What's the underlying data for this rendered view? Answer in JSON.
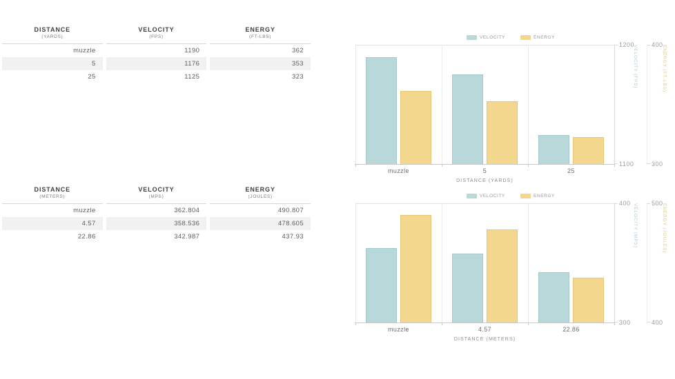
{
  "tables": [
    {
      "columns": [
        {
          "title": "DISTANCE",
          "unit": "(YARDS)"
        },
        {
          "title": "VELOCITY",
          "unit": "(FPS)"
        },
        {
          "title": "ENERGY",
          "unit": "(FT-LBS)"
        }
      ],
      "rows": [
        [
          "muzzle",
          "1190",
          "362"
        ],
        [
          "5",
          "1176",
          "353"
        ],
        [
          "25",
          "1125",
          "323"
        ]
      ]
    },
    {
      "columns": [
        {
          "title": "DISTANCE",
          "unit": "(METERS)"
        },
        {
          "title": "VELOCITY",
          "unit": "(MPS)"
        },
        {
          "title": "ENERGY",
          "unit": "(JOULES)"
        }
      ],
      "rows": [
        [
          "muzzle",
          "362.804",
          "490.807"
        ],
        [
          "4.57",
          "358.536",
          "478.605"
        ],
        [
          "22.86",
          "342.987",
          "437.93"
        ]
      ]
    }
  ],
  "chart_data": [
    {
      "type": "bar",
      "categories": [
        "muzzle",
        "5",
        "25"
      ],
      "xlabel": "DISTANCE (YARDS)",
      "legend_position": "top",
      "series": [
        {
          "name": "VELOCITY",
          "values": [
            1190,
            1176,
            1125
          ],
          "ymin": 1100,
          "ymax": 1200,
          "axis_label": "VELOCITY (FPS)",
          "color": "#b9d8d9",
          "border_color": "#a6c9cb",
          "axis_text_color": "#a7ccd4"
        },
        {
          "name": "ENERGY",
          "values": [
            362,
            353,
            323
          ],
          "ymin": 300,
          "ymax": 400,
          "axis_label": "ENERGY (FT-LBS)",
          "color": "#f2d78c",
          "border_color": "#e6c577",
          "axis_text_color": "#e9c76d"
        }
      ]
    },
    {
      "type": "bar",
      "categories": [
        "muzzle",
        "4.57",
        "22.86"
      ],
      "xlabel": "DISTANCE (METERS)",
      "legend_position": "top",
      "series": [
        {
          "name": "VELOCITY",
          "values": [
            362.804,
            358.536,
            342.987
          ],
          "ymin": 300,
          "ymax": 400,
          "axis_label": "VELOCITY (MPS)",
          "color": "#b9d8d9",
          "border_color": "#a6c9cb",
          "axis_text_color": "#a7ccd4"
        },
        {
          "name": "ENERGY",
          "values": [
            490.807,
            478.605,
            437.93
          ],
          "ymin": 400,
          "ymax": 500,
          "axis_label": "ENERGY (JOULES)",
          "color": "#f2d78c",
          "border_color": "#e6c577",
          "axis_text_color": "#e9c76d"
        }
      ]
    }
  ],
  "colors": {
    "stripe": "#f1f1f1",
    "grid": "#ececec",
    "axis_line": "#c9c9c9",
    "velocity": "#b9d8d9",
    "energy": "#f2d78c"
  }
}
